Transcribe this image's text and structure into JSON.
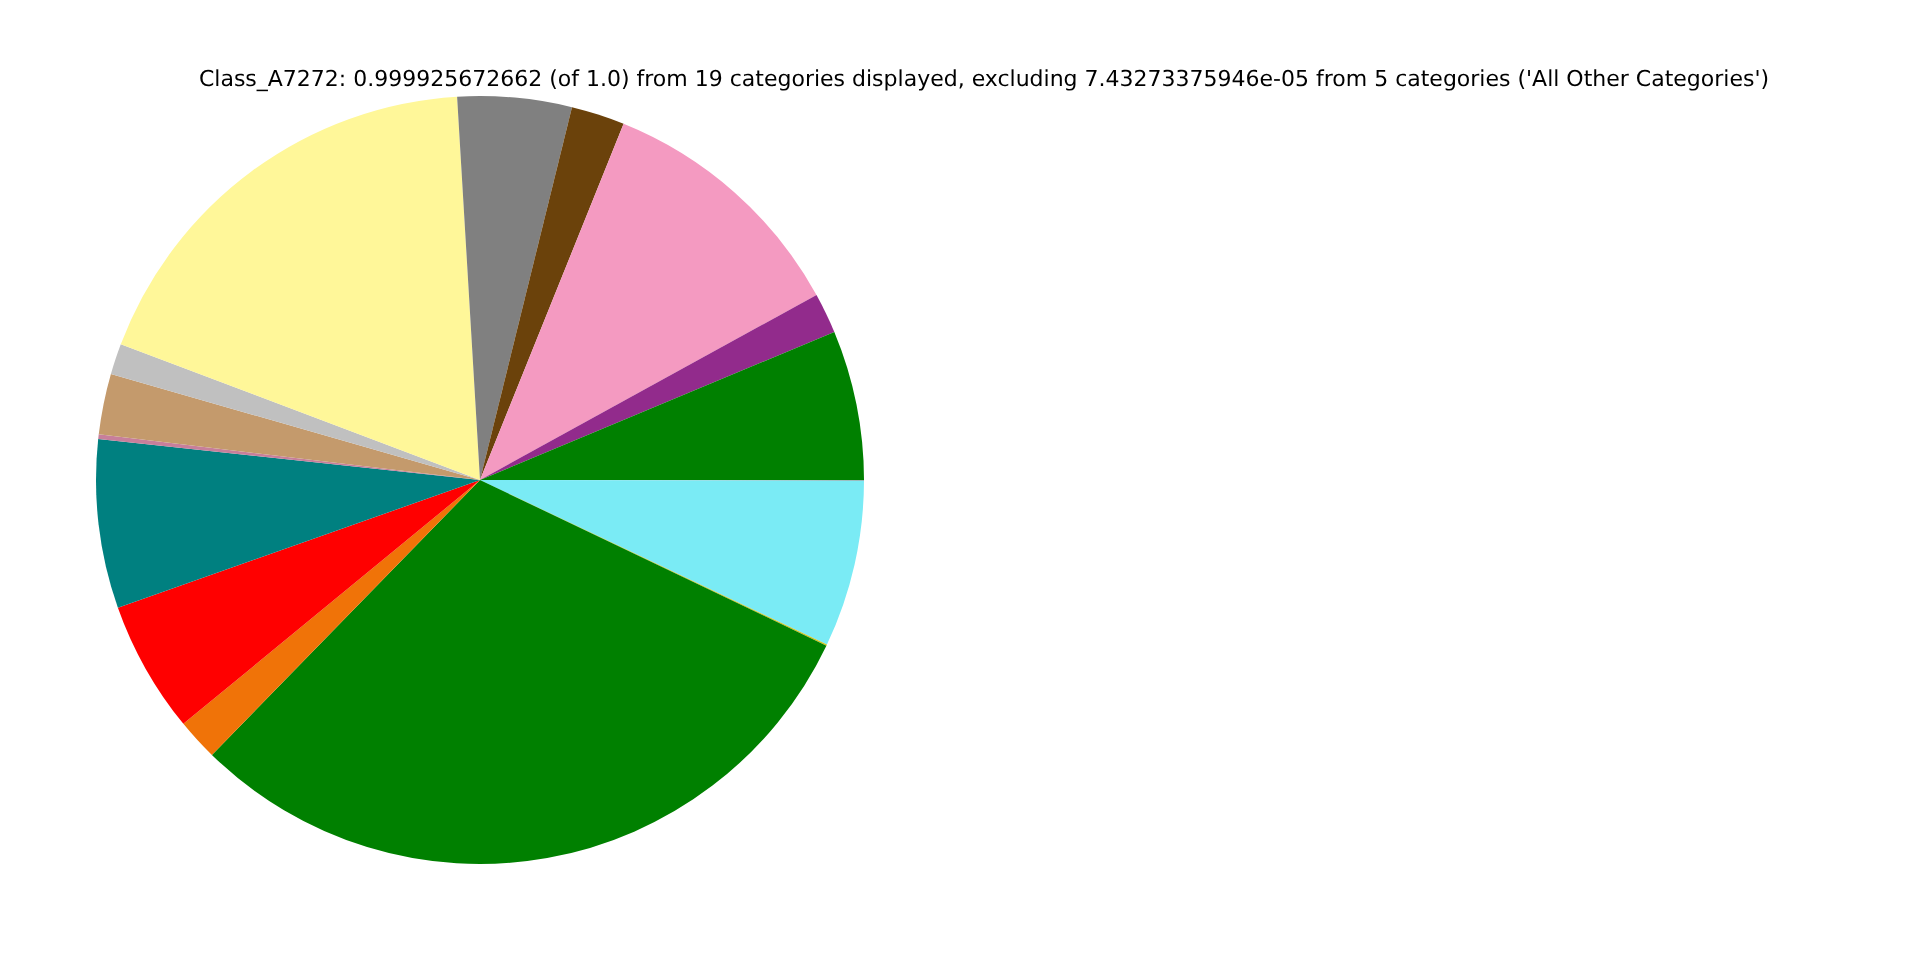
{
  "chart_data": {
    "type": "pie",
    "title": "Class_A7272: 0.999925672662 (of 1.0) from 19 categories displayed, excluding 7.43273375946e-05 from 5 categories ('All Other Categories')",
    "categories": [
      null,
      null,
      null,
      null,
      null,
      null,
      null,
      null,
      null,
      null,
      null,
      null,
      null,
      null,
      null,
      null
    ],
    "values": [
      6.3,
      1.7,
      10.9,
      2.25,
      4.8,
      18.3,
      1.3,
      2.55,
      0.2,
      7.1,
      5.55,
      1.75,
      30.2,
      0.05,
      7.02,
      0.03
    ],
    "colors": [
      "#008000",
      "#922b8c",
      "#f49ac1",
      "#6b420b",
      "#808080",
      "#fff799",
      "#c0c0c0",
      "#c49a6c",
      "#c77f9b",
      "#008080",
      "#ff0000",
      "#f07308",
      "#008000",
      "#d4c41a",
      "#7aebf5",
      "#8a8a8a"
    ],
    "legend": false
  }
}
